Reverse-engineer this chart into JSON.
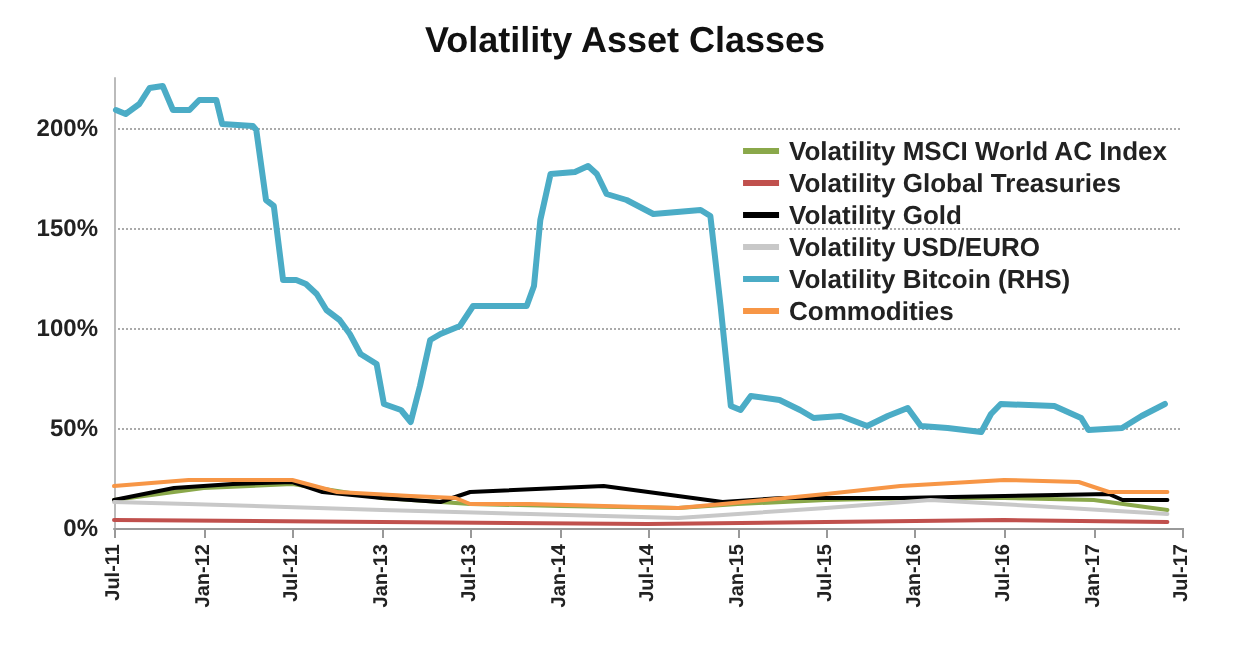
{
  "chart_data": {
    "type": "line",
    "title": "Volatility Asset Classes",
    "xlim": [
      "2011-07",
      "2017-07"
    ],
    "xticks": [
      {
        "value": "2011-07",
        "label": "Jul-11"
      },
      {
        "value": "2012-01",
        "label": "Jan-12"
      },
      {
        "value": "2012-07",
        "label": "Jul-12"
      },
      {
        "value": "2013-01",
        "label": "Jan-13"
      },
      {
        "value": "2013-07",
        "label": "Jul-13"
      },
      {
        "value": "2014-01",
        "label": "Jan-14"
      },
      {
        "value": "2014-07",
        "label": "Jul-14"
      },
      {
        "value": "2015-01",
        "label": "Jan-15"
      },
      {
        "value": "2015-07",
        "label": "Jul-15"
      },
      {
        "value": "2016-01",
        "label": "Jan-16"
      },
      {
        "value": "2016-07",
        "label": "Jul-16"
      },
      {
        "value": "2017-01",
        "label": "Jan-17"
      },
      {
        "value": "2017-07",
        "label": "Jul-17"
      }
    ],
    "ylim": [
      0,
      225
    ],
    "yticks": [
      {
        "value": 0,
        "label": "0%"
      },
      {
        "value": 50,
        "label": "50%"
      },
      {
        "value": 100,
        "label": "100%"
      },
      {
        "value": 150,
        "label": "150%"
      },
      {
        "value": 200,
        "label": "200%"
      }
    ],
    "grid": "y",
    "legend": "top right",
    "line_style": "solid",
    "series": [
      {
        "name": "Volatility MSCI World AC Index",
        "color": "#8aa84a",
        "x": [
          "2011-07",
          "2012-01",
          "2012-07",
          "2013-01",
          "2013-07",
          "2014-01",
          "2014-09",
          "2015-01",
          "2015-07",
          "2016-01",
          "2016-07",
          "2017-01",
          "2017-06"
        ],
        "values": [
          14,
          20,
          22,
          15,
          12,
          11,
          10,
          12,
          14,
          15,
          15,
          14,
          9
        ]
      },
      {
        "name": "Volatility Global Treasuries",
        "color": "#c0504d",
        "x": [
          "2011-07",
          "2013-01",
          "2014-07",
          "2015-07",
          "2016-07",
          "2017-06"
        ],
        "values": [
          4,
          3,
          2,
          3,
          4,
          3
        ]
      },
      {
        "name": "Volatility Gold",
        "color": "#000000",
        "x": [
          "2011-07",
          "2011-11",
          "2012-03",
          "2012-07",
          "2012-09",
          "2013-01",
          "2013-05",
          "2013-07",
          "2014-04",
          "2014-06",
          "2014-10",
          "2014-12",
          "2015-04",
          "2015-12",
          "2016-07",
          "2017-02",
          "2017-03",
          "2017-06"
        ],
        "values": [
          14,
          20,
          22,
          23,
          18,
          15,
          13,
          18,
          21,
          19,
          15,
          13,
          15,
          15,
          16,
          17,
          14,
          14
        ]
      },
      {
        "name": "Volatility USD/EURO",
        "color": "#c8c8c8",
        "x": [
          "2011-07",
          "2011-12",
          "2013-01",
          "2013-11",
          "2014-09",
          "2015-07",
          "2016-02",
          "2016-09",
          "2017-06"
        ],
        "values": [
          13,
          12,
          9,
          7,
          5,
          10,
          14,
          11,
          7
        ]
      },
      {
        "name": "Volatility Bitcoin (RHS)",
        "color": "#4bacc6",
        "x": [
          "2011-07-05",
          "2011-07-25",
          "2011-08-22",
          "2011-09-12",
          "2011-10-09",
          "2011-10-30",
          "2011-12-03",
          "2011-12-23",
          "2012-01-27",
          "2012-02-08",
          "2012-04-11",
          "2012-04-18",
          "2012-05-08",
          "2012-05-24",
          "2012-06-12",
          "2012-07-09",
          "2012-07-29",
          "2012-08-20",
          "2012-09-09",
          "2012-10-06",
          "2012-10-27",
          "2012-11-18",
          "2012-12-21",
          "2013-01-05",
          "2013-02-09",
          "2013-03-01",
          "2013-03-20",
          "2013-04-10",
          "2013-05-01",
          "2013-06-10",
          "2013-07-07",
          "2013-08-12",
          "2013-10-25",
          "2013-11-09",
          "2013-11-22",
          "2013-12-13",
          "2014-02-01",
          "2014-02-28",
          "2014-03-18",
          "2014-04-07",
          "2014-05-18",
          "2014-07-12",
          "2014-10-17",
          "2014-11-06",
          "2014-11-27",
          "2014-12-18",
          "2015-01-07",
          "2015-01-28",
          "2015-03-28",
          "2015-05-09",
          "2015-06-06",
          "2015-08-01",
          "2015-09-24",
          "2015-11-05",
          "2015-12-16",
          "2016-01-12",
          "2016-03-07",
          "2016-05-15",
          "2016-06-04",
          "2016-06-24",
          "2016-10-12",
          "2016-12-06",
          "2016-12-21",
          "2017-02-28",
          "2017-04-09",
          "2017-05-27"
        ],
        "values": [
          209,
          207,
          212,
          220,
          221,
          209,
          209,
          214,
          214,
          202,
          201,
          199,
          164,
          161,
          124,
          124,
          122,
          117,
          109,
          104,
          97,
          87,
          82,
          62,
          59,
          53,
          71,
          94,
          97,
          101,
          111,
          111,
          111,
          121,
          154,
          177,
          178,
          181,
          177,
          167,
          164,
          157,
          159,
          156,
          111,
          61,
          59,
          66,
          64,
          59,
          55,
          56,
          51,
          56,
          60,
          51,
          50,
          48,
          57,
          62,
          61,
          55,
          49,
          50,
          56,
          62
        ]
      },
      {
        "name": "Commodities",
        "color": "#f79646",
        "x": [
          "2011-07",
          "2011-12",
          "2012-07",
          "2012-10",
          "2013-03",
          "2013-06",
          "2013-07",
          "2013-11",
          "2014-09",
          "2014-12",
          "2015-07",
          "2015-12",
          "2016-07",
          "2016-12",
          "2017-02",
          "2017-06"
        ],
        "values": [
          21,
          24,
          24,
          18,
          16,
          15,
          12,
          12,
          10,
          12,
          17,
          21,
          24,
          23,
          18,
          18
        ]
      }
    ]
  }
}
